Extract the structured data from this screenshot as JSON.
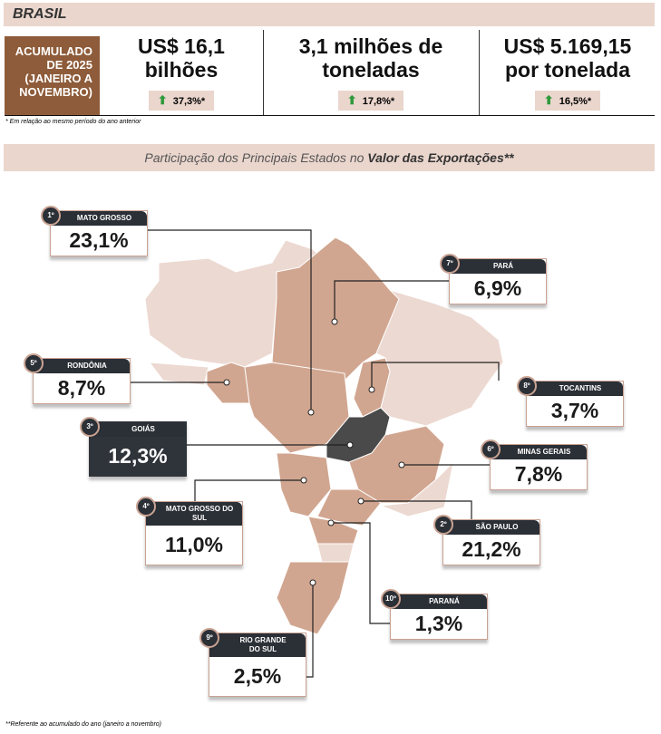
{
  "header": {
    "title": "BRASIL"
  },
  "period": "ACUMULADO DE 2025 (JANEIRO A NOVEMBRO)",
  "kpis": [
    {
      "value_line1": "US$ 16,1",
      "value_line2": "bilhões",
      "change": "37,3%*"
    },
    {
      "value_line1": "3,1 milhões de",
      "value_line2": "toneladas",
      "change": "17,8%*"
    },
    {
      "value_line1": "US$ 5.169,15",
      "value_line2": "por tonelada",
      "change": "16,5%*"
    }
  ],
  "footnote1": "* Em relação ao mesmo período do ano anterior",
  "section": {
    "title_regular": "Participação dos Principais Estados no ",
    "title_bold": "Valor das Exportações**"
  },
  "states": [
    {
      "rank": "1º",
      "name": "MATO GROSSO",
      "share": "23,1%"
    },
    {
      "rank": "2º",
      "name": "SÃO PAULO",
      "share": "21,2%"
    },
    {
      "rank": "3º",
      "name": "GOIÁS",
      "share": "12,3%"
    },
    {
      "rank": "4º",
      "name": "MATO GROSSO DO SUL",
      "share": "11,0%"
    },
    {
      "rank": "5º",
      "name": "RONDÔNIA",
      "share": "8,7%"
    },
    {
      "rank": "6º",
      "name": "MINAS GERAIS",
      "share": "7,8%"
    },
    {
      "rank": "7º",
      "name": "PARÁ",
      "share": "6,9%"
    },
    {
      "rank": "8º",
      "name": "TOCANTINS",
      "share": "3,7%"
    },
    {
      "rank": "9º",
      "name": "RIO GRANDE DO SUL",
      "share": "2,5%"
    },
    {
      "rank": "10º",
      "name": "PARANÁ",
      "share": "1,3%"
    }
  ],
  "footnote2": "**Referente ao acumulado do ano (janeiro a novembro)",
  "colors": {
    "band": "#ead6cd",
    "accent": "#8e5c3a",
    "highlight": "#d1a690",
    "goias": "#4a4a4a",
    "up": "#2d9a3a"
  }
}
